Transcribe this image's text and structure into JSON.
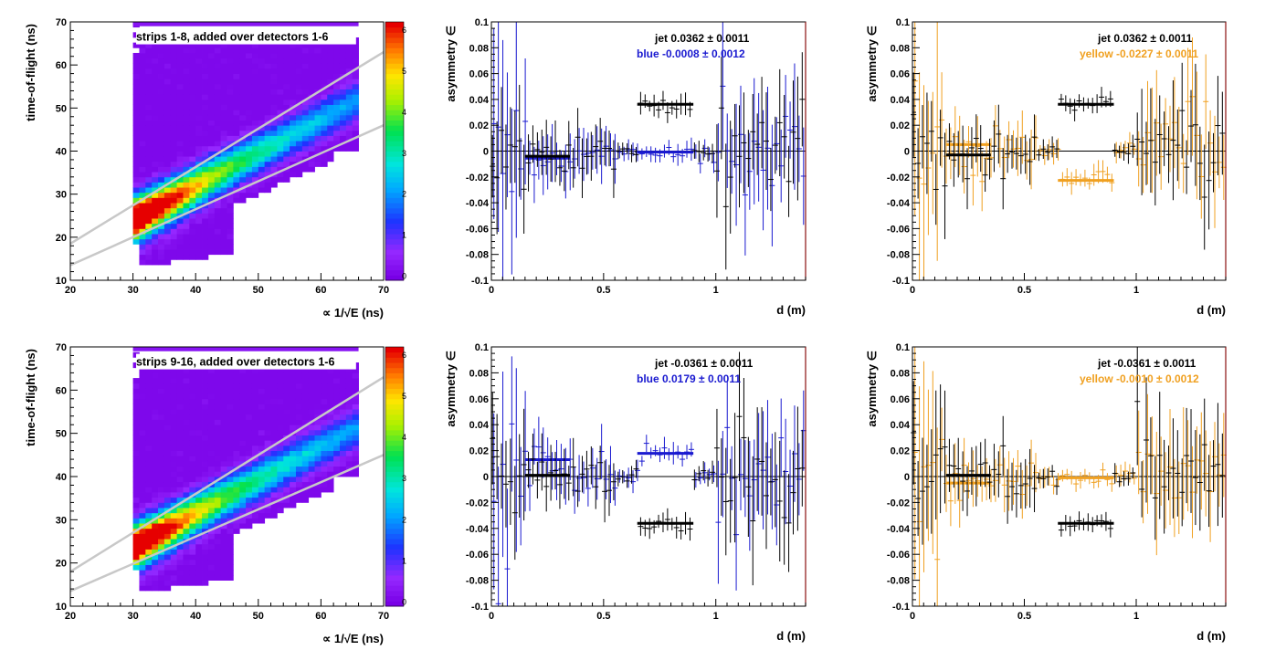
{
  "chart_data": [
    {
      "type": "heatmap",
      "panel": "top-left",
      "title": "strips 1-8, added over detectors 1-6",
      "xlabel": "∝ 1/√E (ns)",
      "ylabel": "time-of-flight (ns)",
      "xlim": [
        20,
        70
      ],
      "ylim": [
        10,
        70
      ],
      "xticks": [
        "20",
        "30",
        "40",
        "50",
        "60",
        "70"
      ],
      "yticks": [
        "10",
        "20",
        "30",
        "40",
        "50",
        "60",
        "70"
      ],
      "colorbar_ticks": [
        "6",
        "5",
        "4",
        "3",
        "2",
        "1",
        "0"
      ],
      "peak": {
        "x": 34,
        "y": 27.5
      },
      "cut_lines": [
        {
          "x": [
            20,
            70
          ],
          "y": [
            18.5,
            63
          ]
        },
        {
          "x": [
            20,
            70
          ],
          "y": [
            13.5,
            46
          ]
        }
      ]
    },
    {
      "type": "scatter",
      "panel": "top-middle",
      "xlabel": "d (m)",
      "ylabel": "asymmetry ∈",
      "xlim": [
        0,
        1.4
      ],
      "ylim": [
        -0.1,
        0.1
      ],
      "xticks": [
        "0",
        "0.5",
        "1"
      ],
      "yticks": [
        "0.1",
        "0.08",
        "0.06",
        "0.04",
        "0.02",
        "0",
        "-0.02",
        "-0.04",
        "-0.06",
        "-0.08",
        "-0.1"
      ],
      "legend": [
        {
          "label": "jet  0.0362 ± 0.0011",
          "color": "#000000"
        },
        {
          "label": "blue -0.0008 ± 0.0012",
          "color": "#1a1ad0"
        }
      ],
      "series": [
        {
          "color": "#000000",
          "fits": [
            {
              "x": [
                0.15,
                0.35
              ],
              "y": -0.004
            },
            {
              "x": [
                0.65,
                0.9
              ],
              "y": 0.0362
            }
          ]
        },
        {
          "color": "#1a1ad0",
          "fits": [
            {
              "x": [
                0.15,
                0.35
              ],
              "y": -0.0055
            },
            {
              "x": [
                0.65,
                0.9
              ],
              "y": -0.0008
            }
          ]
        }
      ]
    },
    {
      "type": "scatter",
      "panel": "top-right",
      "xlabel": "d (m)",
      "ylabel": "asymmetry ∈",
      "xlim": [
        0,
        1.4
      ],
      "ylim": [
        -0.1,
        0.1
      ],
      "xticks": [
        "0",
        "0.5",
        "1"
      ],
      "yticks": [
        "0.1",
        "0.08",
        "0.06",
        "0.04",
        "0.02",
        "0",
        "-0.02",
        "-0.04",
        "-0.06",
        "-0.08",
        "-0.1"
      ],
      "legend": [
        {
          "label": "jet  0.0362 ± 0.0011",
          "color": "#000000"
        },
        {
          "label": "yellow -0.0227 ± 0.0011",
          "color": "#f0a020"
        }
      ],
      "series": [
        {
          "color": "#000000",
          "fits": [
            {
              "x": [
                0.15,
                0.35
              ],
              "y": -0.003
            },
            {
              "x": [
                0.65,
                0.9
              ],
              "y": 0.0362
            }
          ]
        },
        {
          "color": "#f0a020",
          "fits": [
            {
              "x": [
                0.15,
                0.35
              ],
              "y": 0.005
            },
            {
              "x": [
                0.65,
                0.9
              ],
              "y": -0.0227
            }
          ]
        }
      ]
    },
    {
      "type": "heatmap",
      "panel": "bottom-left",
      "title": "strips 9-16, added over detectors 1-6",
      "xlabel": "∝ 1/√E (ns)",
      "ylabel": "time-of-flight (ns)",
      "xlim": [
        20,
        70
      ],
      "ylim": [
        10,
        70
      ],
      "xticks": [
        "20",
        "30",
        "40",
        "50",
        "60",
        "70"
      ],
      "yticks": [
        "10",
        "20",
        "30",
        "40",
        "50",
        "60",
        "70"
      ],
      "colorbar_ticks": [
        "6",
        "5",
        "4",
        "3",
        "2",
        "1",
        "0"
      ],
      "peak": {
        "x": 33.5,
        "y": 25
      },
      "cut_lines": [
        {
          "x": [
            20,
            70
          ],
          "y": [
            18,
            63
          ]
        },
        {
          "x": [
            20,
            70
          ],
          "y": [
            13.5,
            45
          ]
        }
      ]
    },
    {
      "type": "scatter",
      "panel": "bottom-middle",
      "xlabel": "d (m)",
      "ylabel": "asymmetry ∈",
      "xlim": [
        0,
        1.4
      ],
      "ylim": [
        -0.1,
        0.1
      ],
      "xticks": [
        "0",
        "0.5",
        "1"
      ],
      "yticks": [
        "0.1",
        "0.08",
        "0.06",
        "0.04",
        "0.02",
        "0",
        "-0.02",
        "-0.04",
        "-0.06",
        "-0.08",
        "-0.1"
      ],
      "legend": [
        {
          "label": "jet -0.0361 ± 0.0011",
          "color": "#000000"
        },
        {
          "label": "blue  0.0179 ± 0.0011",
          "color": "#1a1ad0"
        }
      ],
      "series": [
        {
          "color": "#000000",
          "fits": [
            {
              "x": [
                0.15,
                0.35
              ],
              "y": 0.001
            },
            {
              "x": [
                0.65,
                0.9
              ],
              "y": -0.0361
            }
          ]
        },
        {
          "color": "#1a1ad0",
          "fits": [
            {
              "x": [
                0.15,
                0.35
              ],
              "y": 0.013
            },
            {
              "x": [
                0.65,
                0.9
              ],
              "y": 0.0179
            }
          ]
        }
      ]
    },
    {
      "type": "scatter",
      "panel": "bottom-right",
      "xlabel": "d (m)",
      "ylabel": "asymmetry ∈",
      "xlim": [
        0,
        1.4
      ],
      "ylim": [
        -0.1,
        0.1
      ],
      "xticks": [
        "0",
        "0.5",
        "1"
      ],
      "yticks": [
        "0.1",
        "0.08",
        "0.06",
        "0.04",
        "0.02",
        "0",
        "-0.02",
        "-0.04",
        "-0.06",
        "-0.08",
        "-0.1"
      ],
      "legend": [
        {
          "label": "jet -0.0361 ± 0.0011",
          "color": "#000000"
        },
        {
          "label": "yellow -0.0010 ± 0.0012",
          "color": "#f0a020"
        }
      ],
      "series": [
        {
          "color": "#000000",
          "fits": [
            {
              "x": [
                0.15,
                0.35
              ],
              "y": 0.001
            },
            {
              "x": [
                0.65,
                0.9
              ],
              "y": -0.0361
            }
          ]
        },
        {
          "color": "#f0a020",
          "fits": [
            {
              "x": [
                0.15,
                0.35
              ],
              "y": -0.005
            },
            {
              "x": [
                0.65,
                0.9
              ],
              "y": -0.001
            }
          ]
        }
      ]
    }
  ]
}
